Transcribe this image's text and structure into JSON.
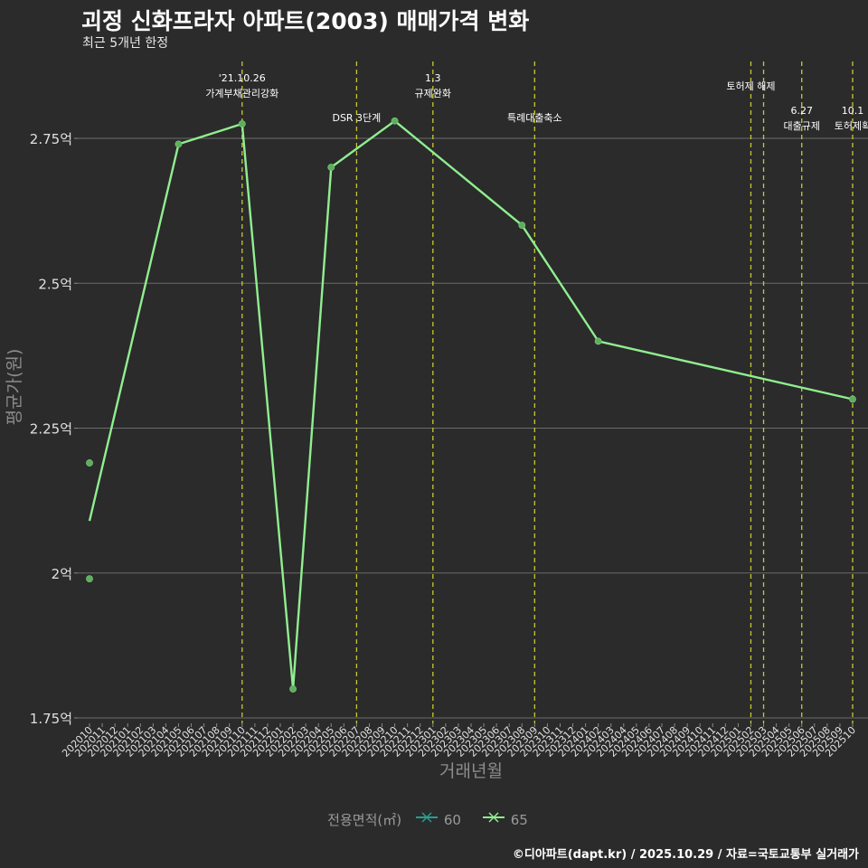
{
  "title": "괴정 신화프라자 아파트(2003) 매매가격 변화",
  "subtitle": "최근 5개년 한정",
  "caption": "©디아파트(dapt.kr) / 2025.10.29 / 자료=국토교통부 실거래가",
  "colors": {
    "background": "#2b2b2b",
    "grid": "#6b6b6b",
    "series_60": "#2a9d8f",
    "series_65": "#90ee90",
    "point": "#5fae5f",
    "vline": "#c8c832",
    "axis_text": "#e0e0e0",
    "axis_title": "#8c8c8c"
  },
  "legend": {
    "title": "전용면적(㎡)",
    "items": [
      {
        "label": "60",
        "color": "#2a9d8f"
      },
      {
        "label": "65",
        "color": "#90ee90"
      }
    ]
  },
  "chart_data": {
    "type": "line",
    "title": "괴정 신화프라자 아파트(2003) 매매가격 변화",
    "xlabel": "거래년월",
    "ylabel": "평균가(원)",
    "ylim": [
      1.75,
      2.98
    ],
    "yticks": [
      {
        "value": 1.75,
        "label": "1.75억"
      },
      {
        "value": 2.0,
        "label": "2억"
      },
      {
        "value": 2.25,
        "label": "2.25억"
      },
      {
        "value": 2.5,
        "label": "2.5억"
      },
      {
        "value": 2.75,
        "label": "2.75억"
      }
    ],
    "categories": [
      "202010",
      "202011",
      "202012",
      "202101",
      "202102",
      "202103",
      "202104",
      "202105",
      "202106",
      "202107",
      "202108",
      "202109",
      "202110",
      "202111",
      "202112",
      "202201",
      "202202",
      "202203",
      "202204",
      "202205",
      "202206",
      "202207",
      "202208",
      "202209",
      "202210",
      "202211",
      "202212",
      "202301",
      "202302",
      "202303",
      "202304",
      "202305",
      "202306",
      "202307",
      "202308",
      "202309",
      "202310",
      "202311",
      "202312",
      "202401",
      "202402",
      "202403",
      "202404",
      "202405",
      "202406",
      "202407",
      "202408",
      "202409",
      "202410",
      "202411",
      "202412",
      "202501",
      "202502",
      "202503",
      "202504",
      "202505",
      "202506",
      "202507",
      "202508",
      "202509",
      "202510"
    ],
    "series": [
      {
        "name": "65",
        "color": "#90ee90",
        "line": [
          {
            "x": "202010",
            "y": 2.09
          },
          {
            "x": "202105",
            "y": 2.74
          },
          {
            "x": "202110",
            "y": 2.775
          },
          {
            "x": "202202",
            "y": 1.8
          },
          {
            "x": "202205",
            "y": 2.7
          },
          {
            "x": "202210",
            "y": 2.78
          },
          {
            "x": "202308",
            "y": 2.6
          },
          {
            "x": "202402",
            "y": 2.4
          },
          {
            "x": "202510",
            "y": 2.3
          }
        ],
        "points": [
          {
            "x": "202010",
            "y": 2.19
          },
          {
            "x": "202010",
            "y": 1.99
          },
          {
            "x": "202105",
            "y": 2.74
          },
          {
            "x": "202110",
            "y": 2.775
          },
          {
            "x": "202202",
            "y": 1.8
          },
          {
            "x": "202205",
            "y": 2.7
          },
          {
            "x": "202210",
            "y": 2.78
          },
          {
            "x": "202308",
            "y": 2.6
          },
          {
            "x": "202402",
            "y": 2.4
          },
          {
            "x": "202510",
            "y": 2.3
          }
        ]
      }
    ],
    "events": [
      {
        "x": "202110",
        "lines": [
          "'21.10.26",
          "가계부채관리강화"
        ],
        "row": "top"
      },
      {
        "x": "202207",
        "lines": [
          "DSR 3단계"
        ],
        "row": "low"
      },
      {
        "x": "202301",
        "lines": [
          "1.3",
          "규제완화"
        ],
        "row": "top"
      },
      {
        "x": "202309",
        "lines": [
          "특례대출축소"
        ],
        "row": "low"
      },
      {
        "x": "202502",
        "lines": [
          "토허제 해제"
        ],
        "row": "mid"
      },
      {
        "x": "202503",
        "lines": [],
        "row": "mid"
      },
      {
        "x": "202506",
        "lines": [
          "6.27",
          "대출규제"
        ],
        "row": "low2"
      },
      {
        "x": "202510",
        "lines": [
          "10.1",
          "토허제확"
        ],
        "row": "low2"
      }
    ]
  }
}
